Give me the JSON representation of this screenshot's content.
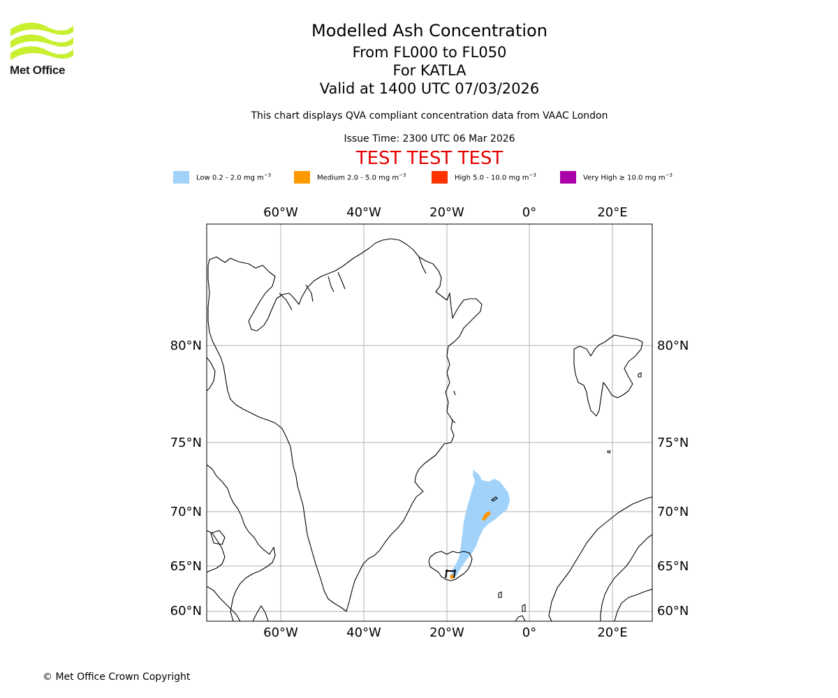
{
  "header": {
    "org_name": "Met Office",
    "title_line_1": "Modelled Ash Concentration",
    "title_line_2": "From FL000 to FL050",
    "title_line_3": "For KATLA",
    "title_line_4": "Valid at 1400 UTC 07/03/2026",
    "subtitle": "This chart displays QVA compliant concentration data from VAAC London",
    "issue_time": "Issue Time: 2300 UTC 06 Mar 2026",
    "test_banner": "TEST TEST TEST"
  },
  "legend": {
    "items": [
      {
        "label": "Low 0.2 - 2.0 mg m",
        "exp": "−3",
        "color": "#a0d2fa"
      },
      {
        "label": "Medium 2.0 - 5.0 mg m",
        "exp": "−3",
        "color": "#ff9900"
      },
      {
        "label": "High 5.0 - 10.0 mg m",
        "exp": "−3",
        "color": "#ff3300"
      },
      {
        "label": "Very High  ≥  10.0 mg m",
        "exp": "−3",
        "color": "#aa00aa"
      }
    ]
  },
  "map": {
    "lon_ticks": [
      "60°W",
      "40°W",
      "20°W",
      "0°",
      "20°E"
    ],
    "lat_ticks": [
      "80°N",
      "75°N",
      "70°N",
      "65°N",
      "60°N"
    ],
    "volcano": "KATLA",
    "colors": {
      "land_outline": "#000000",
      "grid": "#b0b0b0",
      "low_ash": "#a0d2fa",
      "medium_ash": "#ff9900"
    }
  },
  "footer": {
    "copyright": "© Met Office Crown Copyright"
  }
}
